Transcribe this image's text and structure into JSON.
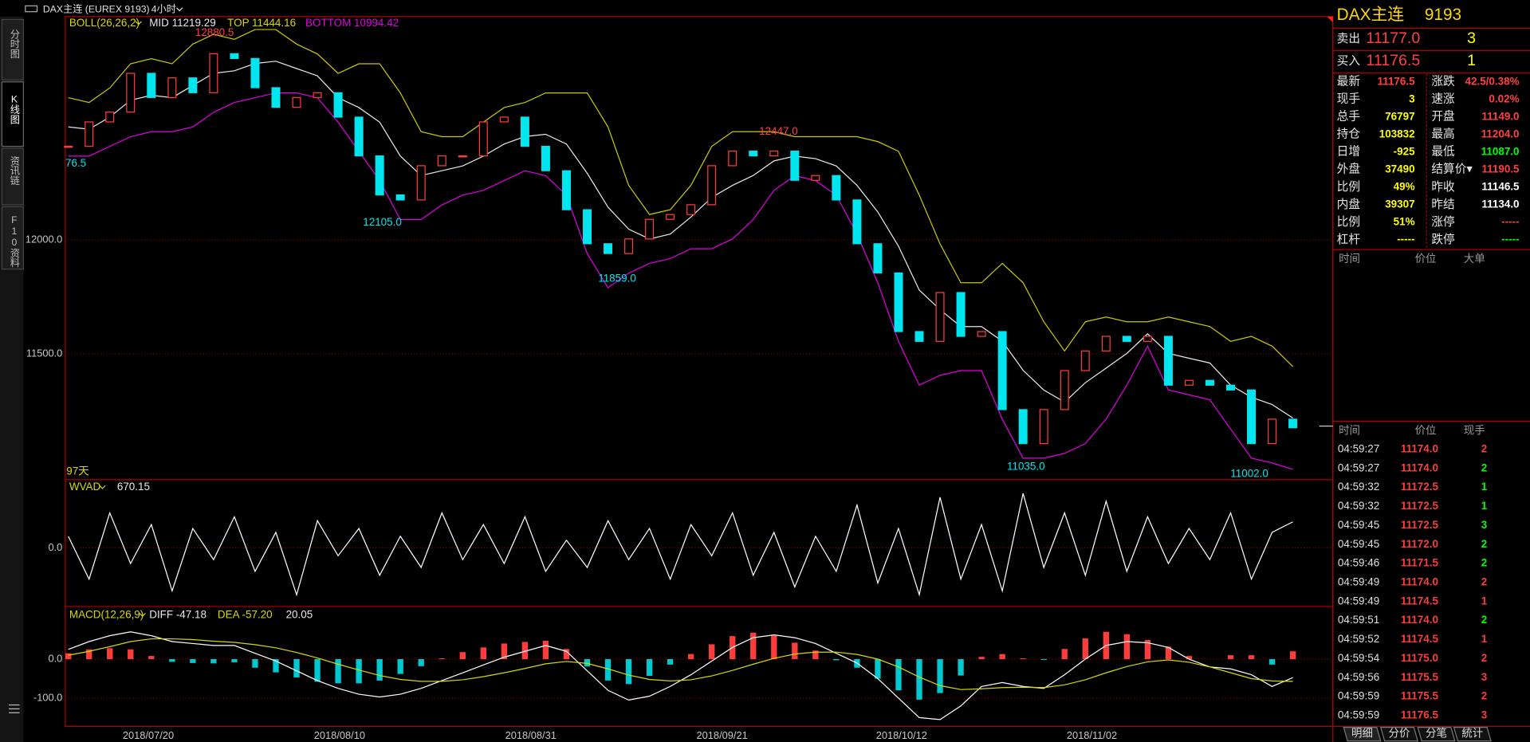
{
  "header": {
    "title": "DAX主连 (EUREX 9193)",
    "period": "4小时"
  },
  "side_tabs": [
    "分时图",
    "K线图",
    "资讯链",
    "F10资料"
  ],
  "kline": {
    "header": {
      "name": "BOLL(26,26,2)",
      "mid": "MID 11219.29",
      "top": "TOP 11444.16",
      "bottom": "BOTTOM 10994.42"
    },
    "ylim": [
      10948.6,
      12978.7
    ],
    "yticks": [
      {
        "value": 12000,
        "label": "12000.0"
      },
      {
        "value": 11500,
        "label": "11500.0"
      }
    ],
    "up_color": "#ff3c3c",
    "down_color": "#00e5ee",
    "upper_color": "#c8c800",
    "mid_color": "#e8e8e8",
    "lower_color": "#e000e0",
    "close": [
      12410,
      12517,
      12560,
      12730,
      12624,
      12710,
      12645,
      12816,
      12795,
      12667,
      12581,
      12624,
      12645,
      12538,
      12368,
      12197,
      12175,
      12325,
      12368,
      12368,
      12517,
      12538,
      12410,
      12303,
      12132,
      11983,
      11940,
      12004,
      12090,
      12111,
      12154,
      12325,
      12389,
      12368,
      12389,
      12261,
      12282,
      12175,
      11983,
      11855,
      11598,
      11555,
      11769,
      11577,
      11598,
      11256,
      11107,
      11256,
      11427,
      11513,
      11577,
      11555,
      11577,
      11363,
      11384,
      11363,
      11342,
      11107,
      11214,
      11176.5
    ],
    "upper": [
      12623,
      12602,
      12666,
      12772,
      12794,
      12772,
      12858,
      12901,
      12879,
      12922,
      12922,
      12858,
      12815,
      12730,
      12772,
      12772,
      12644,
      12474,
      12452,
      12452,
      12516,
      12580,
      12602,
      12644,
      12644,
      12644,
      12495,
      12239,
      12111,
      12132,
      12239,
      12410,
      12474,
      12474,
      12474,
      12452,
      12452,
      12452,
      12452,
      12431,
      12388,
      12196,
      11982,
      11812,
      11812,
      11897,
      11812,
      11641,
      11513,
      11641,
      11662,
      11641,
      11641,
      11662,
      11641,
      11620,
      11555,
      11577,
      11534,
      11444.16
    ],
    "mid": [
      12495,
      12485,
      12538,
      12612,
      12634,
      12623,
      12677,
      12730,
      12741,
      12773,
      12783,
      12751,
      12719,
      12623,
      12580,
      12516,
      12367,
      12282,
      12303,
      12324,
      12367,
      12420,
      12453,
      12463,
      12420,
      12292,
      12143,
      12047,
      12004,
      12025,
      12100,
      12186,
      12239,
      12282,
      12346,
      12367,
      12356,
      12324,
      12239,
      12122,
      11972,
      11780,
      11694,
      11620,
      11620,
      11556,
      11428,
      11342,
      11289,
      11374,
      11438,
      11502,
      11588,
      11502,
      11481,
      11460,
      11363,
      11310,
      11278,
      11219.29
    ],
    "lower": [
      12367,
      12367,
      12410,
      12452,
      12474,
      12474,
      12495,
      12559,
      12602,
      12623,
      12644,
      12644,
      12623,
      12516,
      12388,
      12260,
      12089,
      12089,
      12153,
      12196,
      12217,
      12260,
      12303,
      12281,
      12196,
      11940,
      11790,
      11854,
      11897,
      11918,
      11961,
      11961,
      12004,
      12089,
      12217,
      12281,
      12260,
      12196,
      12025,
      11812,
      11555,
      11363,
      11406,
      11427,
      11427,
      11214,
      11043,
      11043,
      11064,
      11107,
      11214,
      11363,
      11534,
      11342,
      11321,
      11299,
      11171,
      11043,
      11022,
      10994.42
    ],
    "annotations": [
      {
        "value": 12880.5,
        "label": "12880.5",
        "color": "#ff4040"
      },
      {
        "value": 12105,
        "label": "12105.0",
        "color": "#00e5ee"
      },
      {
        "value": 11859,
        "label": "11859.0",
        "color": "#00e5ee"
      },
      {
        "value": 12447,
        "label": "12447.0",
        "color": "#ff4040"
      },
      {
        "value": 11035,
        "label": "11035.0",
        "color": "#00e5ee"
      },
      {
        "value": 11002,
        "label": "11002.0",
        "color": "#00e5ee"
      }
    ],
    "edge_label": "76.5",
    "days": "97天"
  },
  "wvad": {
    "header": {
      "name": "WVAD",
      "value": "670.15"
    },
    "ylim": [
      -1500,
      1750
    ],
    "yticks": [
      {
        "value": 0,
        "label": "0.0"
      }
    ],
    "color": "#ffffff",
    "values": [
      300,
      -800,
      900,
      -400,
      600,
      -1100,
      500,
      -300,
      800,
      -600,
      400,
      -1200,
      700,
      -200,
      500,
      -700,
      300,
      -500,
      900,
      -300,
      600,
      -400,
      800,
      -600,
      200,
      -500,
      700,
      -300,
      500,
      -800,
      600,
      -200,
      900,
      -700,
      400,
      -1000,
      300,
      -600,
      1100,
      -900,
      500,
      -1200,
      1300,
      -800,
      600,
      -1100,
      1400,
      -500,
      900,
      -700,
      1200,
      -600,
      800,
      -400,
      500,
      -300,
      900,
      -800,
      400,
      670.15
    ]
  },
  "macd": {
    "header": {
      "name": "MACD(12,26,9)",
      "diff": "DIFF -47.18",
      "dea": "DEA -57.20",
      "macd": "20.05"
    },
    "ylim": [
      -172.5,
      135
    ],
    "yticks": [
      {
        "value": 0,
        "label": "0.0"
      },
      {
        "value": -100,
        "label": "-100.0"
      }
    ],
    "diff_color": "#ffffff",
    "dea_color": "#d8d800",
    "up_color": "#ff3c3c",
    "down_color": "#00c8d0",
    "diff": [
      25,
      45,
      60,
      70,
      60,
      45,
      40,
      35,
      35,
      15,
      -5,
      -30,
      -55,
      -75,
      -90,
      -97,
      -90,
      -75,
      -55,
      -35,
      -15,
      5,
      20,
      35,
      20,
      -30,
      -80,
      -105,
      -95,
      -70,
      -40,
      -5,
      30,
      55,
      62,
      55,
      40,
      15,
      -10,
      -50,
      -100,
      -150,
      -155,
      -120,
      -70,
      -60,
      -70,
      -75,
      -40,
      0,
      35,
      45,
      42,
      30,
      0,
      -20,
      -25,
      -40,
      -70,
      -47.18
    ],
    "dea": [
      10,
      20,
      32,
      45,
      52,
      52,
      50,
      46,
      43,
      37,
      29,
      17,
      3,
      -13,
      -28,
      -42,
      -52,
      -57,
      -57,
      -53,
      -45,
      -35,
      -24,
      -12,
      -6,
      -11,
      -25,
      -41,
      -52,
      -56,
      -53,
      -43,
      -29,
      -13,
      2,
      13,
      18,
      18,
      12,
      0,
      -20,
      -46,
      -68,
      -78,
      -76,
      -73,
      -72,
      -73,
      -66,
      -53,
      -35,
      -19,
      -7,
      -2,
      -8,
      -20,
      -35,
      -50,
      -56,
      -57.2
    ],
    "hist": [
      15,
      25,
      28,
      25,
      8,
      -7,
      -10,
      -11,
      -8,
      -22,
      -34,
      -47,
      -58,
      -62,
      -62,
      -55,
      -38,
      -18,
      2,
      18,
      30,
      40,
      44,
      47,
      26,
      -19,
      -55,
      -64,
      -43,
      -14,
      13,
      38,
      59,
      68,
      60,
      42,
      22,
      -3,
      -22,
      -50,
      -80,
      -104,
      -87,
      -42,
      6,
      13,
      2,
      -2,
      26,
      53,
      70,
      64,
      49,
      32,
      8,
      0,
      10,
      10,
      -14,
      20.05
    ]
  },
  "dates": [
    "2018/07/20",
    "2018/08/10",
    "2018/08/31",
    "2018/09/21",
    "2018/10/12",
    "2018/11/02"
  ],
  "quote": {
    "name": "DAX主连",
    "code": "9193",
    "ask": {
      "label": "卖出",
      "price": "11177.0",
      "vol": "3"
    },
    "bid": {
      "label": "买入",
      "price": "11176.5",
      "vol": "1"
    },
    "fields": [
      [
        {
          "label": "最新",
          "value": "11176.5",
          "color": "#ff4040"
        },
        {
          "label": "涨跌",
          "value": "42.5/0.38%",
          "color": "#ff4040"
        }
      ],
      [
        {
          "label": "现手",
          "value": "3",
          "color": "#ffff00"
        },
        {
          "label": "速涨",
          "value": "0.02%",
          "color": "#ff4040"
        }
      ],
      [
        {
          "label": "总手",
          "value": "76797",
          "color": "#ffff00"
        },
        {
          "label": "开盘",
          "value": "11149.0",
          "color": "#ff4040"
        }
      ],
      [
        {
          "label": "持仓",
          "value": "103832",
          "color": "#ffff00"
        },
        {
          "label": "最高",
          "value": "11204.0",
          "color": "#ff4040"
        }
      ],
      [
        {
          "label": "日增",
          "value": "-925",
          "color": "#ffff00"
        },
        {
          "label": "最低",
          "value": "11087.0",
          "color": "#00ff00"
        }
      ],
      [
        {
          "label": "外盘",
          "value": "37490",
          "color": "#ffff00"
        },
        {
          "label": "结算价▾",
          "value": "11190.5",
          "color": "#ff4040"
        }
      ],
      [
        {
          "label": "比例",
          "value": "49%",
          "color": "#ffff00"
        },
        {
          "label": "昨收",
          "value": "11146.5",
          "color": "#ffffff"
        }
      ],
      [
        {
          "label": "内盘",
          "value": "39307",
          "color": "#ffff00"
        },
        {
          "label": "昨结",
          "value": "11134.0",
          "color": "#ffffff"
        }
      ],
      [
        {
          "label": "比例",
          "value": "51%",
          "color": "#ffff00"
        },
        {
          "label": "涨停",
          "value": "-----",
          "color": "#ff4040"
        }
      ],
      [
        {
          "label": "杠杆",
          "value": "-----",
          "color": "#ffff00"
        },
        {
          "label": "跌停",
          "value": "-----",
          "color": "#00ff00"
        }
      ]
    ],
    "big_orders_header": [
      "时间",
      "价位",
      "大单"
    ],
    "ticks_header": [
      "时间",
      "价位",
      "现手"
    ],
    "ticks": [
      {
        "time": "04:59:27",
        "price": "11174.0",
        "vol": "2",
        "dir": "up"
      },
      {
        "time": "04:59:27",
        "price": "11174.0",
        "vol": "2",
        "dir": "down"
      },
      {
        "time": "04:59:32",
        "price": "11172.5",
        "vol": "1",
        "dir": "down"
      },
      {
        "time": "04:59:32",
        "price": "11172.5",
        "vol": "1",
        "dir": "down"
      },
      {
        "time": "04:59:45",
        "price": "11172.5",
        "vol": "3",
        "dir": "down"
      },
      {
        "time": "04:59:45",
        "price": "11172.0",
        "vol": "2",
        "dir": "down"
      },
      {
        "time": "04:59:46",
        "price": "11171.5",
        "vol": "2",
        "dir": "down"
      },
      {
        "time": "04:59:49",
        "price": "11174.0",
        "vol": "2",
        "dir": "up"
      },
      {
        "time": "04:59:49",
        "price": "11174.5",
        "vol": "1",
        "dir": "up"
      },
      {
        "time": "04:59:51",
        "price": "11174.0",
        "vol": "2",
        "dir": "down"
      },
      {
        "time": "04:59:52",
        "price": "11174.5",
        "vol": "1",
        "dir": "up"
      },
      {
        "time": "04:59:54",
        "price": "11175.0",
        "vol": "2",
        "dir": "up"
      },
      {
        "time": "04:59:56",
        "price": "11175.5",
        "vol": "3",
        "dir": "up"
      },
      {
        "time": "04:59:59",
        "price": "11175.5",
        "vol": "2",
        "dir": "up"
      },
      {
        "time": "04:59:59",
        "price": "11176.5",
        "vol": "3",
        "dir": "up"
      }
    ],
    "tabs": [
      "明细",
      "分价",
      "分笔",
      "統计"
    ]
  }
}
